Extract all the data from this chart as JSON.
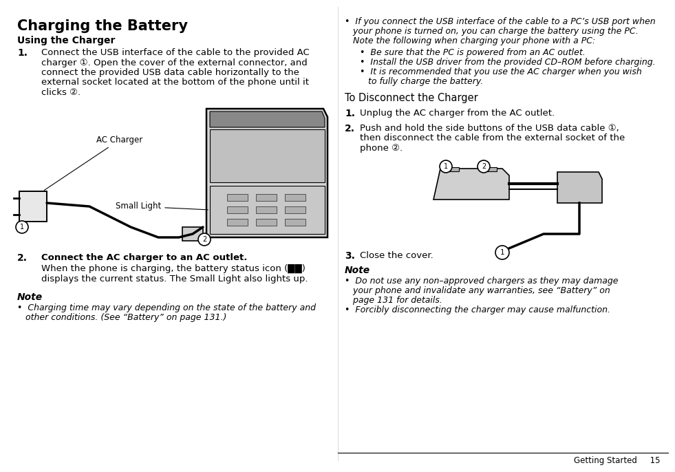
{
  "bg_color": "#ffffff",
  "title": "Charging the Battery",
  "footer_text": "Getting Started     15",
  "left_column": {
    "section1_header": "Using the Charger",
    "image_label_ac": "AC Charger",
    "image_label_small_light": "Small Light",
    "step2_text_bold": "Connect the AC charger to an AC outlet.",
    "step2_text": "When the phone is charging, the battery status icon (██)\ndisplays the current status. The Small Light also lights up.",
    "note_header": "Note",
    "note_bullet1_line1": "Charging time may vary depending on the state of the battery and",
    "note_bullet1_line2": "other conditions. (See “Battery” on page 131.)"
  },
  "right_column": {
    "bullet_pc1_line1": "If you connect the USB interface of the cable to a PC’s USB port when",
    "bullet_pc1_line2": "your phone is turned on, you can charge the battery using the PC.",
    "bullet_pc1_line3": "Note the following when charging your phone with a PC:",
    "sub_bullet1": "Be sure that the PC is powered from an AC outlet.",
    "sub_bullet2": "Install the USB driver from the provided CD–ROM before charging.",
    "sub_bullet3_line1": "It is recommended that you use the AC charger when you wish",
    "sub_bullet3_line2": "to fully charge the battery.",
    "disconnect_header": "To Disconnect the Charger",
    "step1_text": "Unplug the AC charger from the AC outlet.",
    "step2_text_line1": "Push and hold the side buttons of the USB data cable ①,",
    "step2_text_line2": "then disconnect the cable from the external socket of the",
    "step2_text_line3": "phone ②.",
    "step3_text": "Close the cover.",
    "note_header": "Note",
    "note_bullet1_line1": "Do not use any non–approved chargers as they may damage",
    "note_bullet1_line2": "your phone and invalidate any warranties, see “Battery” on",
    "note_bullet1_line3": "page 131 for details.",
    "note_bullet2": "Forcibly disconnecting the charger may cause malfunction."
  }
}
